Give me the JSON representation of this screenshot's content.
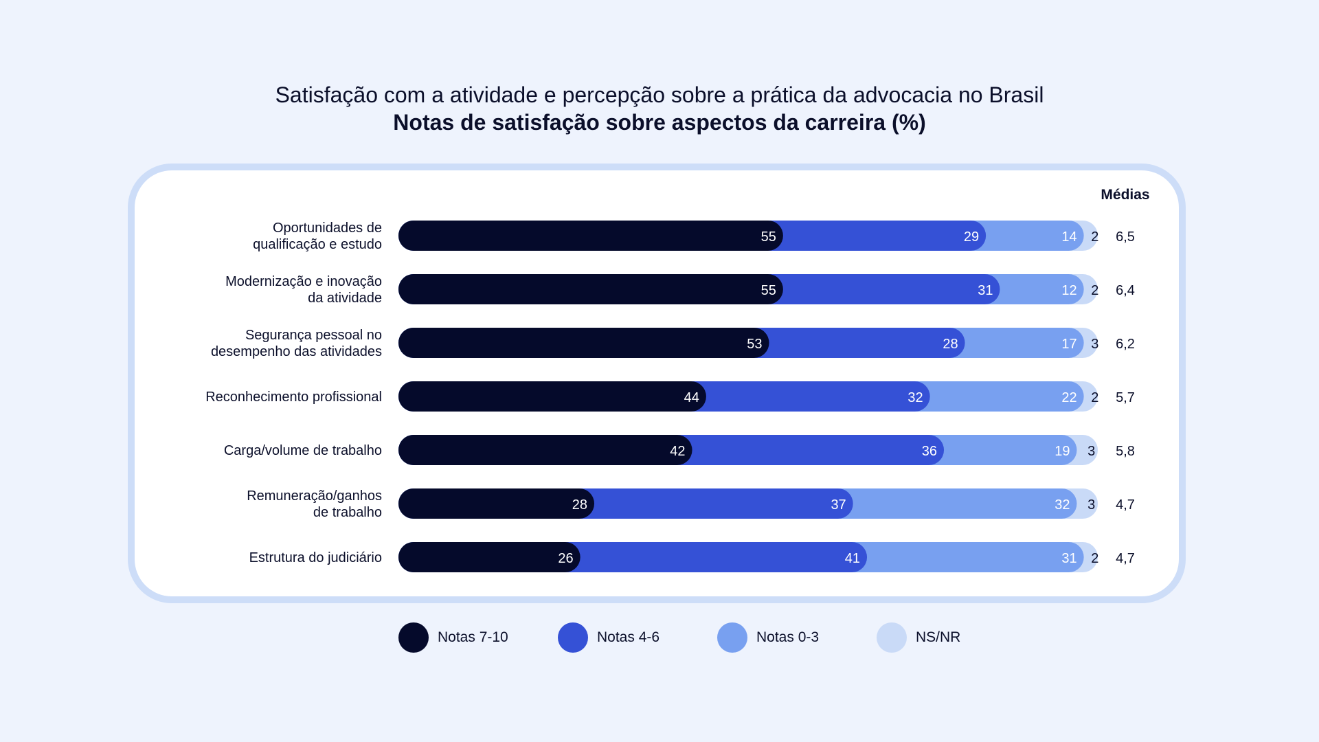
{
  "header": {
    "title": "Satisfação com a atividade e percepção sobre a prática da advocacia no Brasil",
    "subtitle": "Notas de satisfação sobre aspectos da carreira (%)"
  },
  "colors": {
    "notas_7_10": "#050a2b",
    "notas_4_6": "#3551d6",
    "notas_0_3": "#78a0f0",
    "ns_nr": "#c9daf7"
  },
  "legend": [
    {
      "label": "Notas 7-10",
      "color": "#050a2b"
    },
    {
      "label": "Notas 4-6",
      "color": "#3551d6"
    },
    {
      "label": "Notas 0-3",
      "color": "#78a0f0"
    },
    {
      "label": "NS/NR",
      "color": "#c9daf7"
    }
  ],
  "chart_data": {
    "type": "bar",
    "orientation": "horizontal",
    "stacked": true,
    "title": "Satisfação com a atividade e percepção sobre a prática da advocacia no Brasil",
    "subtitle": "Notas de satisfação sobre aspectos da carreira (%)",
    "xlim": [
      0,
      100
    ],
    "averages_header": "Médias",
    "categories": [
      [
        "Oportunidades de",
        "qualificação e estudo"
      ],
      [
        "Modernização e inovação",
        "da atividade"
      ],
      [
        "Segurança pessoal no",
        "desempenho das atividades"
      ],
      [
        "Reconhecimento profissional"
      ],
      [
        "Carga/volume de trabalho"
      ],
      [
        "Remuneração/ganhos",
        "de trabalho"
      ],
      [
        "Estrutura do judiciário"
      ]
    ],
    "series": [
      {
        "name": "Notas 7-10",
        "color": "#050a2b",
        "label_color": "#ffffff",
        "values": [
          55,
          55,
          53,
          44,
          42,
          28,
          26
        ]
      },
      {
        "name": "Notas 4-6",
        "color": "#3551d6",
        "label_color": "#ffffff",
        "values": [
          29,
          31,
          28,
          32,
          36,
          37,
          41
        ]
      },
      {
        "name": "Notas 0-3",
        "color": "#78a0f0",
        "label_color": "#ffffff",
        "values": [
          14,
          12,
          17,
          22,
          19,
          32,
          31
        ]
      },
      {
        "name": "NS/NR",
        "color": "#c9daf7",
        "label_color": "#0b0f2a",
        "values": [
          2,
          2,
          3,
          2,
          3,
          3,
          2
        ]
      }
    ],
    "averages": [
      "6,5",
      "6,4",
      "6,2",
      "5,7",
      "5,8",
      "4,7",
      "4,7"
    ]
  }
}
